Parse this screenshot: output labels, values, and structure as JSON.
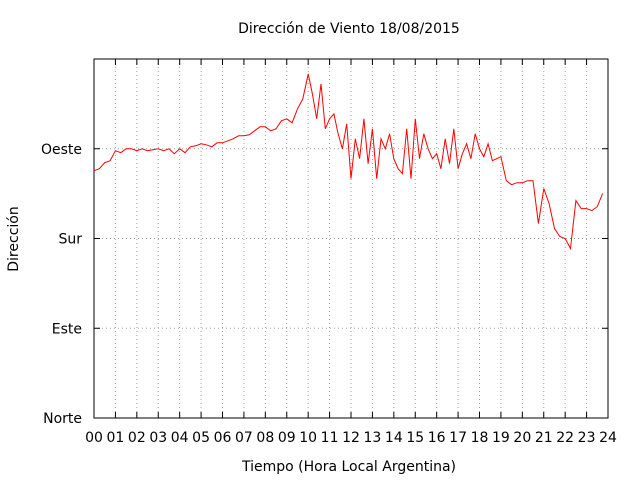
{
  "chart_data": {
    "type": "line",
    "title": "Dirección de Viento 18/08/2015",
    "xlabel": "Tiempo (Hora Local Argentina)",
    "ylabel": "Dirección",
    "xlim": [
      0,
      24
    ],
    "ylim": [
      0,
      360
    ],
    "x_tick_labels": [
      "00",
      "01",
      "02",
      "03",
      "04",
      "05",
      "06",
      "07",
      "08",
      "09",
      "10",
      "11",
      "12",
      "13",
      "14",
      "15",
      "16",
      "17",
      "18",
      "19",
      "20",
      "21",
      "22",
      "23",
      "24"
    ],
    "y_ticks": [
      0,
      90,
      180,
      270
    ],
    "y_tick_labels": [
      "Norte",
      "Este",
      "Sur",
      "Oeste"
    ],
    "grid": true,
    "series": [
      {
        "color": "#ff0000",
        "x": [
          0,
          0.25,
          0.5,
          0.75,
          1.0,
          1.25,
          1.5,
          1.75,
          2.0,
          2.25,
          2.5,
          2.75,
          3.0,
          3.25,
          3.5,
          3.75,
          4.0,
          4.25,
          4.5,
          4.75,
          5.0,
          5.25,
          5.5,
          5.75,
          6.0,
          6.25,
          6.5,
          6.75,
          7.0,
          7.25,
          7.5,
          7.75,
          8.0,
          8.25,
          8.5,
          8.75,
          9.0,
          9.25,
          9.5,
          9.75,
          10.0,
          10.2,
          10.4,
          10.6,
          10.8,
          11.0,
          11.2,
          11.4,
          11.6,
          11.8,
          12.0,
          12.2,
          12.4,
          12.6,
          12.8,
          13.0,
          13.2,
          13.4,
          13.6,
          13.8,
          14.0,
          14.2,
          14.4,
          14.6,
          14.8,
          15.0,
          15.2,
          15.4,
          15.6,
          15.8,
          16.0,
          16.2,
          16.4,
          16.6,
          16.8,
          17.0,
          17.2,
          17.4,
          17.6,
          17.8,
          18.0,
          18.2,
          18.4,
          18.6,
          18.8,
          19.0,
          19.25,
          19.5,
          19.75,
          20.0,
          20.25,
          20.5,
          20.75,
          21.0,
          21.25,
          21.5,
          21.75,
          22.0,
          22.25,
          22.5,
          22.75,
          23.0,
          23.25,
          23.5,
          23.75
        ],
        "y": [
          248,
          250,
          256,
          258,
          268,
          266,
          270,
          270,
          268,
          270,
          268,
          269,
          270,
          268,
          270,
          265,
          270,
          266,
          272,
          273,
          275,
          274,
          272,
          276,
          276,
          278,
          280,
          283,
          283,
          284,
          288,
          292,
          292,
          288,
          290,
          298,
          300,
          296,
          310,
          320,
          345,
          325,
          300,
          335,
          290,
          300,
          305,
          285,
          270,
          295,
          240,
          280,
          260,
          300,
          255,
          290,
          240,
          280,
          270,
          285,
          260,
          250,
          245,
          290,
          240,
          300,
          260,
          285,
          270,
          260,
          265,
          250,
          280,
          255,
          290,
          250,
          265,
          275,
          260,
          285,
          270,
          262,
          275,
          258,
          260,
          262,
          238,
          234,
          236,
          236,
          238,
          238,
          195,
          230,
          215,
          190,
          182,
          180,
          170,
          218,
          210,
          210,
          208,
          212,
          225
        ]
      }
    ]
  }
}
